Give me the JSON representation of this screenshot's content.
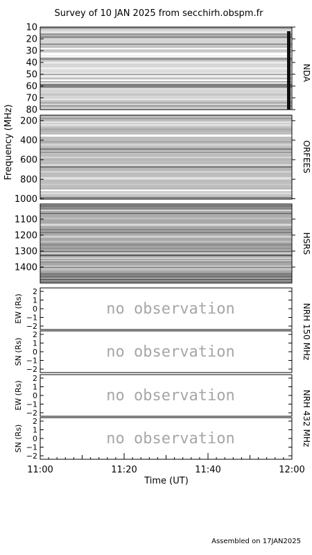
{
  "title": "Survey of 10 JAN 2025 from secchirh.obspm.fr",
  "footer": "Assembled on 17JAN2025",
  "chart_data": {
    "type": "heatmap",
    "xlabel": "Time (UT)",
    "x_ticks": [
      "11:00",
      "11:20",
      "11:40",
      "12:00"
    ],
    "xlim": [
      "11:00",
      "12:00"
    ],
    "spectrogram_ylabel": "Frequency (MHz)",
    "spectrograms": [
      {
        "instrument": "NDA",
        "ylim": [
          10,
          80
        ],
        "y_ticks": [
          "10",
          "20",
          "30",
          "40",
          "50",
          "60",
          "70",
          "80"
        ]
      },
      {
        "instrument": "ORFEES",
        "ylim": [
          144,
          1004
        ],
        "y_ticks": [
          "200",
          "400",
          "600",
          "800",
          "1000"
        ]
      },
      {
        "instrument": "HSRS",
        "ylim": [
          1005,
          1500
        ],
        "y_ticks": [
          "1100",
          "1200",
          "1300",
          "1400"
        ]
      }
    ],
    "nrh_panels": [
      {
        "ylabel": "EW (Rs)",
        "message": "no observation",
        "y_ticks": [
          "2",
          "1",
          "0",
          "−1",
          "−2"
        ]
      },
      {
        "ylabel": "SN (Rs)",
        "message": "no observation",
        "y_ticks": [
          "2",
          "1",
          "0",
          "−1",
          "−2"
        ]
      },
      {
        "ylabel": "EW (Rs)",
        "message": "no observation",
        "y_ticks": [
          "2",
          "1",
          "0",
          "−1",
          "−2"
        ]
      },
      {
        "ylabel": "SN (Rs)",
        "message": "no observation",
        "y_ticks": [
          "2",
          "1",
          "0",
          "−1",
          "−2"
        ]
      }
    ],
    "nrh_labels": [
      "NRH 150 MHz",
      "NRH 432 MHz"
    ]
  }
}
